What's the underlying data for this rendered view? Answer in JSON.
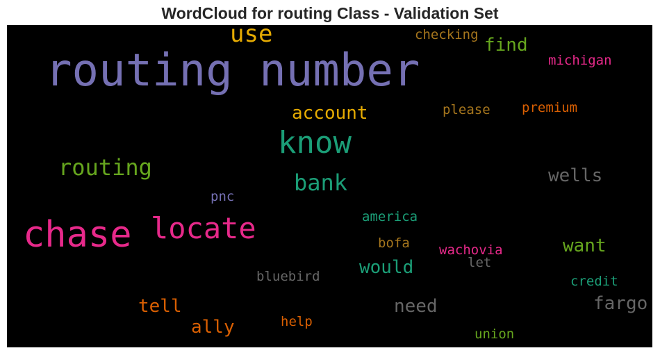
{
  "title": "WordCloud for routing Class - Validation Set",
  "words": [
    {
      "text": "routing number",
      "color": "#7570b3"
    },
    {
      "text": "chase",
      "color": "#e7298a"
    },
    {
      "text": "locate",
      "color": "#e7298a"
    },
    {
      "text": "know",
      "color": "#1b9e77"
    },
    {
      "text": "use",
      "color": "#e6ab02"
    },
    {
      "text": "routing",
      "color": "#66a61e"
    },
    {
      "text": "bank",
      "color": "#1b9e77"
    },
    {
      "text": "account",
      "color": "#e6ab02"
    },
    {
      "text": "find",
      "color": "#66a61e"
    },
    {
      "text": "wells",
      "color": "#666666"
    },
    {
      "text": "fargo",
      "color": "#666666"
    },
    {
      "text": "want",
      "color": "#66a61e"
    },
    {
      "text": "would",
      "color": "#1b9e77"
    },
    {
      "text": "need",
      "color": "#666666"
    },
    {
      "text": "tell",
      "color": "#d95f02"
    },
    {
      "text": "ally",
      "color": "#d95f02"
    },
    {
      "text": "checking",
      "color": "#a6761d"
    },
    {
      "text": "michigan",
      "color": "#e7298a"
    },
    {
      "text": "please",
      "color": "#a6761d"
    },
    {
      "text": "premium",
      "color": "#d95f02"
    },
    {
      "text": "pnc",
      "color": "#7570b3"
    },
    {
      "text": "america",
      "color": "#1b9e77"
    },
    {
      "text": "bofa",
      "color": "#a6761d"
    },
    {
      "text": "wachovia",
      "color": "#e7298a"
    },
    {
      "text": "let",
      "color": "#666666"
    },
    {
      "text": "bluebird",
      "color": "#666666"
    },
    {
      "text": "credit",
      "color": "#1b9e77"
    },
    {
      "text": "help",
      "color": "#d95f02"
    },
    {
      "text": "union",
      "color": "#66a61e"
    }
  ]
}
